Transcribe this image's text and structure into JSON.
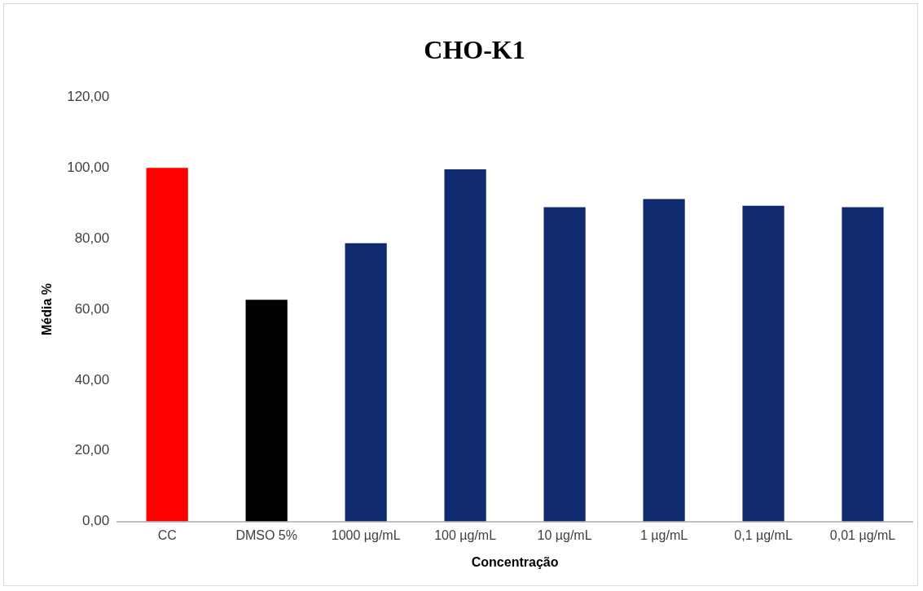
{
  "chart_data": {
    "type": "bar",
    "title": "CHO-K1",
    "xlabel": "Concentração",
    "ylabel": "Média %",
    "categories": [
      "CC",
      "DMSO 5%",
      "1000 µg/mL",
      "100 µg/mL",
      "10 µg/mL",
      "1 µg/mL",
      "0,1 µg/mL",
      "0,01 µg/mL"
    ],
    "values": [
      100.0,
      62.7,
      78.7,
      99.6,
      88.9,
      91.2,
      89.3,
      88.9
    ],
    "colors": [
      "#ff0000",
      "#000000",
      "#0f2a6e",
      "#0f2a6e",
      "#0f2a6e",
      "#0f2a6e",
      "#0f2a6e",
      "#0f2a6e"
    ],
    "ylim": [
      0,
      120
    ],
    "yticks": [
      {
        "value": 0,
        "label": "0,00"
      },
      {
        "value": 20,
        "label": "20,00"
      },
      {
        "value": 40,
        "label": "40,00"
      },
      {
        "value": 60,
        "label": "60,00"
      },
      {
        "value": 80,
        "label": "80,00"
      },
      {
        "value": 100,
        "label": "100,00"
      },
      {
        "value": 120,
        "label": "120,00"
      }
    ],
    "grid": false,
    "legend": false
  }
}
